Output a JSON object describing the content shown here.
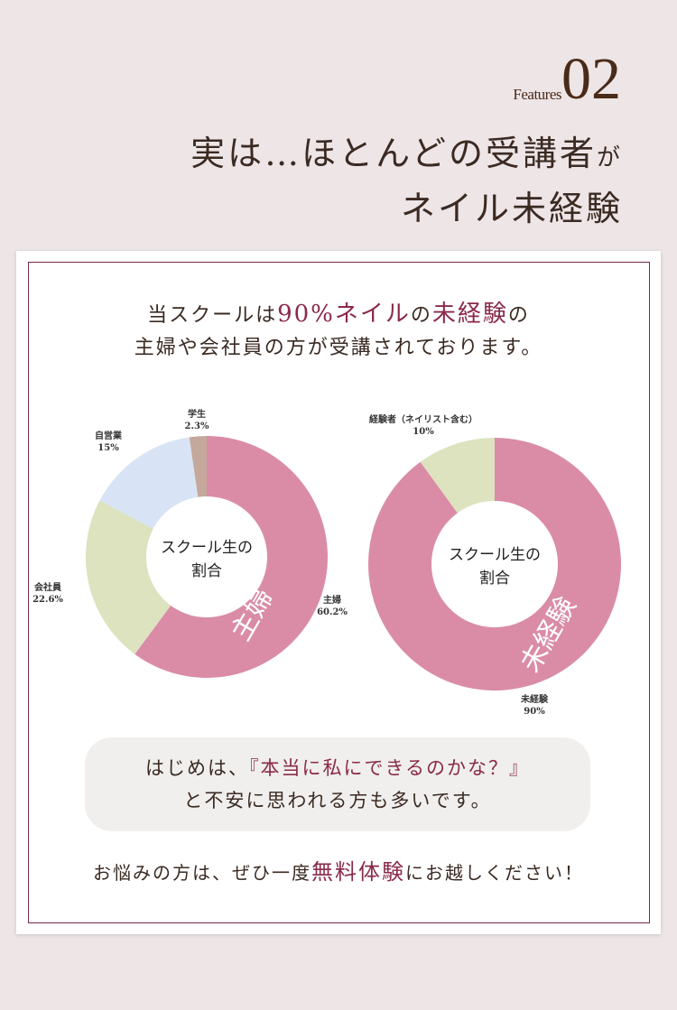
{
  "header": {
    "features_label": "Features",
    "features_number": "02",
    "title_line1_a": "実は…ほとんどの受講者",
    "title_line1_b": "が",
    "title_line2": "ネイル未経験"
  },
  "lead": {
    "p1": "当スクールは",
    "p1_accent": "90%ネイル",
    "p1_b": "の",
    "p1_accent2": "未経験",
    "p1_c": "の",
    "line2": "主婦や会社員の方が受講されております。"
  },
  "colors": {
    "pink": "#da8ca6",
    "green": "#dde2bf",
    "blue": "#d8e4f5",
    "tan": "#c4a89c",
    "accent": "#8a2a4a"
  },
  "chart_data": [
    {
      "type": "pie",
      "donut": true,
      "center_text": "スクール生の\n割合",
      "center_line1": "スクール生の",
      "center_line2": "割合",
      "highlight": "主婦",
      "slices": [
        {
          "label": "主婦",
          "value": 60.2,
          "value_label": "60.2%",
          "color": "#da8ca6"
        },
        {
          "label": "会社員",
          "value": 22.6,
          "value_label": "22.6%",
          "color": "#dde2bf"
        },
        {
          "label": "自営業",
          "value": 15,
          "value_label": "15%",
          "color": "#d8e4f5"
        },
        {
          "label": "学生",
          "value": 2.3,
          "value_label": "2.3%",
          "color": "#c4a89c"
        }
      ]
    },
    {
      "type": "pie",
      "donut": true,
      "center_line1": "スクール生の",
      "center_line2": "割合",
      "highlight": "未経験",
      "slices": [
        {
          "label": "未経験",
          "value": 90,
          "value_label": "90%",
          "color": "#da8ca6"
        },
        {
          "label": "経験者（ネイリスト含む）",
          "value": 10,
          "value_label": "10%",
          "color": "#dde2bf"
        }
      ]
    }
  ],
  "bubble": {
    "a": "はじめは、",
    "accent": "『本当に私にできるのかな？』",
    "line2": "と不安に思われる方も多いです。"
  },
  "closing": {
    "a": "お悩みの方は、ぜひ一度",
    "accent": "無料体験",
    "b": "にお越しください！"
  }
}
